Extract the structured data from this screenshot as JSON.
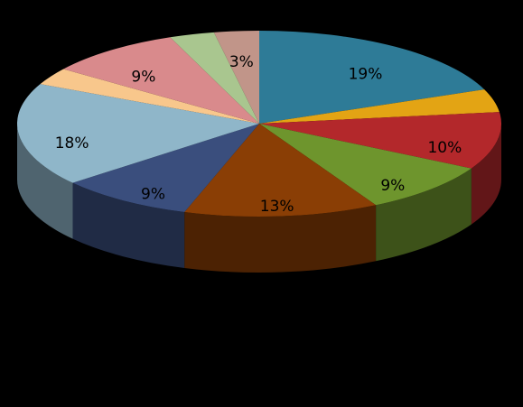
{
  "chart_data": {
    "type": "pie",
    "values": [
      19,
      4,
      10,
      9,
      13,
      9,
      18,
      3,
      9,
      3,
      3
    ],
    "value_labels": [
      "19%",
      null,
      "10%",
      "9%",
      "13%",
      "9%",
      "18%",
      null,
      "9%",
      null,
      "3%"
    ],
    "colors": [
      "#2e7b97",
      "#e3a414",
      "#b3282b",
      "#6e952d",
      "#8a3e05",
      "#3a4e7d",
      "#8fb6c9",
      "#f8c78c",
      "#d98a8c",
      "#a9c68f",
      "#c19589"
    ]
  }
}
